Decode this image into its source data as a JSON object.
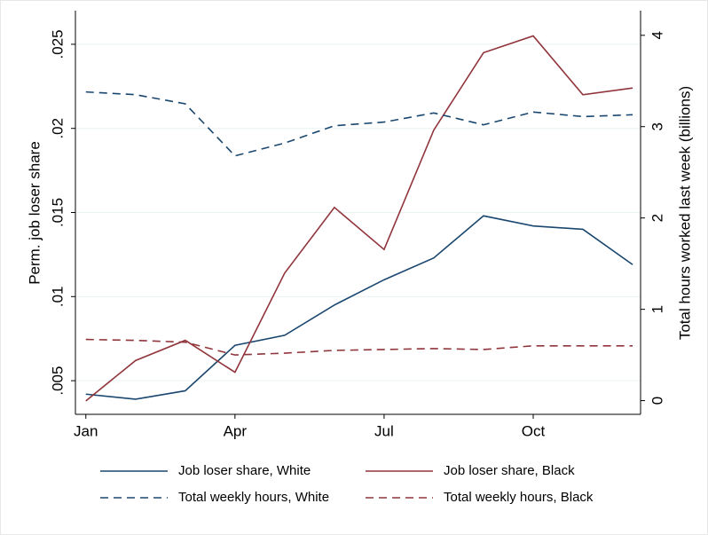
{
  "chart_data": {
    "type": "line",
    "ylabel": "Perm. job loser share",
    "y2label": "Total hours worked last week (billions)",
    "x": [
      1,
      2,
      3,
      4,
      5,
      6,
      7,
      8,
      9,
      10,
      11,
      12
    ],
    "xlim": [
      0.79,
      12.16
    ],
    "xticks": [
      {
        "value": 1,
        "label": "Jan"
      },
      {
        "value": 4,
        "label": "Apr"
      },
      {
        "value": 7,
        "label": "Jul"
      },
      {
        "value": 10,
        "label": "Oct"
      }
    ],
    "ylim": [
      0.003,
      0.027
    ],
    "yticks": [
      {
        "value": 0.005,
        "label": ".005"
      },
      {
        "value": 0.01,
        "label": ".01"
      },
      {
        "value": 0.015,
        "label": ".015"
      },
      {
        "value": 0.02,
        "label": ".02"
      },
      {
        "value": 0.025,
        "label": ".025"
      }
    ],
    "y2lim": [
      -0.15,
      4.27
    ],
    "y2ticks": [
      0,
      1,
      2,
      3,
      4
    ],
    "grid": true,
    "series": [
      {
        "name": "Job loser share, White",
        "color": "#1a476f",
        "line_style": "solid",
        "values": [
          0.0042,
          0.0039,
          0.0044,
          0.0071,
          0.0077,
          0.0095,
          0.011,
          0.0123,
          0.0148,
          0.0142,
          0.014,
          0.0119
        ]
      },
      {
        "name": "Job loser share, Black",
        "color": "#90353b",
        "line_style": "solid",
        "values": [
          0.0038,
          0.0062,
          0.0074,
          0.0055,
          0.0114,
          0.0153,
          0.0128,
          0.0199,
          0.0245,
          0.0255,
          0.022,
          0.0224
        ]
      },
      {
        "name": "Total weekly hours, White",
        "color": "#1a476f",
        "line_style": "dashed",
        "axis": "y2",
        "values": [
          3.38,
          3.35,
          3.25,
          2.68,
          2.82,
          3.01,
          3.05,
          3.15,
          3.02,
          3.16,
          3.11,
          3.13
        ]
      },
      {
        "name": "Total weekly hours, Black",
        "color": "#90353b",
        "line_style": "dashed",
        "axis": "y2",
        "values": [
          0.67,
          0.66,
          0.64,
          0.5,
          0.52,
          0.55,
          0.56,
          0.57,
          0.56,
          0.6,
          0.6,
          0.6
        ]
      }
    ]
  }
}
